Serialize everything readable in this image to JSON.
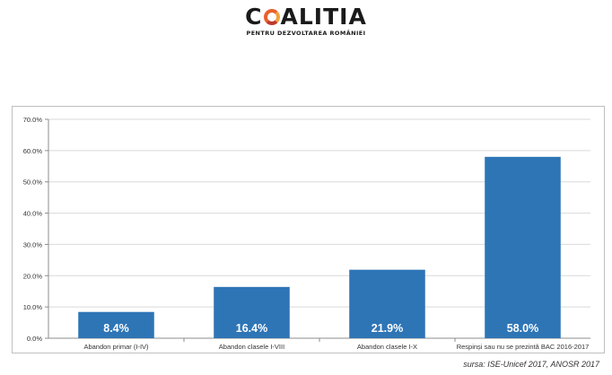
{
  "logo": {
    "name_prefix": "C",
    "name_suffix": "ALITIA",
    "tagline": "PENTRU DEZVOLTAREA ROMÂNIEI"
  },
  "source": "sursa: ISE-Unicef 2017, ANOSR 2017",
  "colors": {
    "bar": "#2e75b6",
    "grid": "#d9d9d9",
    "axis": "#8c8c8c",
    "label": "#ffffff"
  },
  "chart_data": {
    "type": "bar",
    "categories": [
      "Abandon primar (I-IV)",
      "Abandon clasele I-VIII",
      "Abandon clasele I-X",
      "Respinși sau nu se prezintă BAC 2016-2017"
    ],
    "values": [
      8.4,
      16.4,
      21.9,
      58.0
    ],
    "data_labels": [
      "8.4%",
      "16.4%",
      "21.9%",
      "58.0%"
    ],
    "yticks": [
      "0.0%",
      "10.0%",
      "20.0%",
      "30.0%",
      "40.0%",
      "50.0%",
      "60.0%",
      "70.0%"
    ],
    "ylim": [
      0,
      70
    ],
    "grid": true,
    "title": "",
    "xlabel": "",
    "ylabel": ""
  }
}
